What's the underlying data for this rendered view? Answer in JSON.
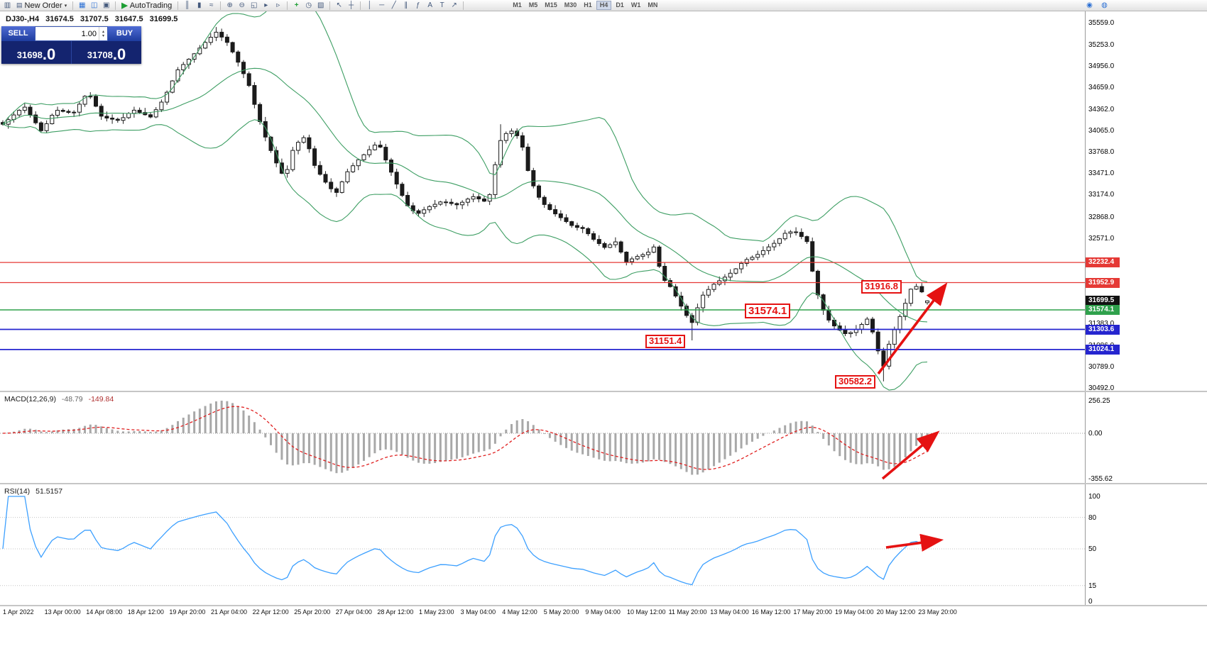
{
  "toolbar": {
    "new_order": {
      "label": "New Order"
    },
    "autotrading": {
      "label": "AutoTrading"
    },
    "icons": {
      "new_chart": "▥",
      "order_ticket": "▤",
      "caret": "▾",
      "chart_window": "▦",
      "market_watch": "◫",
      "data_window": "▣",
      "play": "▶",
      "bar_chart": "║",
      "candlestick_chart": "▮",
      "line_chart": "≈",
      "zoom_in": "⊕",
      "zoom_out": "⊖",
      "tile_windows": "◱",
      "auto_scroll": "▸",
      "chart_shift": "▹",
      "indicators_add": "+",
      "periods_clock": "◷",
      "templates": "▧",
      "cursor": "↖",
      "crosshair": "┼",
      "vertical_line": "│",
      "horizontal_line": "─",
      "trendline": "╱",
      "channel": "∥",
      "fibonacci": "ƒ",
      "text": "A",
      "label": "T",
      "arrow_object": "↗",
      "chat": "◉",
      "community": "◍"
    },
    "timeframes": {
      "items": [
        "M1",
        "M5",
        "M15",
        "M30",
        "H1",
        "H4",
        "D1",
        "W1",
        "MN"
      ],
      "active": "H4"
    }
  },
  "chart": {
    "symbol": "DJ30-,H4",
    "open": "31674.5",
    "high": "31707.5",
    "low": "31647.5",
    "close": "31699.5"
  },
  "one_click": {
    "sell_label": "SELL",
    "buy_label": "BUY",
    "volume": "1.00",
    "spin_up": "▴",
    "spin_down": "▾",
    "sell_price": {
      "main": "31698",
      "pips": ".0"
    },
    "buy_price": {
      "main": "31708",
      "pips": ".0"
    }
  },
  "price_axis": {
    "ticks": [
      "35559.0",
      "35253.0",
      "34956.0",
      "34659.0",
      "34362.0",
      "34065.0",
      "33768.0",
      "33471.0",
      "33174.0",
      "32868.0",
      "32571.0",
      "31383.0",
      "31086.0",
      "30789.0",
      "30492.0"
    ],
    "badges": [
      {
        "text": "32232.4",
        "color": "#e53935"
      },
      {
        "text": "31952.9",
        "color": "#e53935"
      },
      {
        "text": "31699.5",
        "color": "#111111"
      },
      {
        "text": "31574.1",
        "color": "#2fa14c"
      },
      {
        "text": "31303.6",
        "color": "#2525cf"
      },
      {
        "text": "31024.1",
        "color": "#2525cf"
      }
    ]
  },
  "macd_panel": {
    "name": "MACD(12,26,9)",
    "value_main": "-48.79",
    "value_signal": "-149.84",
    "scale": [
      "256.25",
      "0.00",
      "-355.62"
    ]
  },
  "rsi_panel": {
    "name": "RSI(14)",
    "value": "51.5157",
    "scale": [
      "100",
      "80",
      "50",
      "15",
      "0"
    ]
  },
  "annotations": {
    "a1": "31916.8",
    "a2": "31574.1",
    "a3": "31151.4",
    "a4": "30582.2"
  },
  "time_axis": {
    "labels": [
      "1 Apr 2022",
      "13 Apr 00:00",
      "14 Apr 08:00",
      "18 Apr 12:00",
      "19 Apr 20:00",
      "21 Apr 04:00",
      "22 Apr 12:00",
      "25 Apr 20:00",
      "27 Apr 04:00",
      "28 Apr 12:00",
      "1 May 23:00",
      "3 May 04:00",
      "4 May 12:00",
      "5 May 20:00",
      "9 May 04:00",
      "10 May 12:00",
      "11 May 20:00",
      "13 May 04:00",
      "16 May 12:00",
      "17 May 20:00",
      "19 May 04:00",
      "20 May 12:00",
      "23 May 20:00"
    ]
  },
  "chart_data": {
    "type": "candlestick",
    "symbol": "DJ30-",
    "timeframe": "H4",
    "last_ohlc": {
      "open": 31674.5,
      "high": 31707.5,
      "low": 31647.5,
      "close": 31699.5
    },
    "bid": 31698.0,
    "ask": 31708.0,
    "y_axis_range": [
      30492.0,
      35559.0
    ],
    "candle_count": 170,
    "price_waypoints": [
      [
        0.0,
        34150
      ],
      [
        0.023,
        34400
      ],
      [
        0.042,
        34050
      ],
      [
        0.057,
        34350
      ],
      [
        0.076,
        34300
      ],
      [
        0.092,
        34600
      ],
      [
        0.107,
        34250
      ],
      [
        0.126,
        34200
      ],
      [
        0.141,
        34350
      ],
      [
        0.16,
        34250
      ],
      [
        0.174,
        34500
      ],
      [
        0.189,
        34900
      ],
      [
        0.205,
        35100
      ],
      [
        0.22,
        35300
      ],
      [
        0.231,
        35430
      ],
      [
        0.243,
        35280
      ],
      [
        0.253,
        35050
      ],
      [
        0.266,
        34700
      ],
      [
        0.275,
        34300
      ],
      [
        0.286,
        33900
      ],
      [
        0.298,
        33550
      ],
      [
        0.305,
        33400
      ],
      [
        0.315,
        33850
      ],
      [
        0.327,
        33980
      ],
      [
        0.338,
        33550
      ],
      [
        0.35,
        33330
      ],
      [
        0.36,
        33180
      ],
      [
        0.372,
        33480
      ],
      [
        0.384,
        33650
      ],
      [
        0.395,
        33780
      ],
      [
        0.406,
        33900
      ],
      [
        0.416,
        33600
      ],
      [
        0.426,
        33320
      ],
      [
        0.437,
        33030
      ],
      [
        0.448,
        32900
      ],
      [
        0.46,
        33000
      ],
      [
        0.475,
        33080
      ],
      [
        0.492,
        33030
      ],
      [
        0.508,
        33150
      ],
      [
        0.525,
        33060
      ],
      [
        0.537,
        33900
      ],
      [
        0.548,
        34080
      ],
      [
        0.56,
        33950
      ],
      [
        0.57,
        33400
      ],
      [
        0.582,
        33080
      ],
      [
        0.594,
        32940
      ],
      [
        0.605,
        32840
      ],
      [
        0.617,
        32730
      ],
      [
        0.628,
        32700
      ],
      [
        0.64,
        32540
      ],
      [
        0.651,
        32440
      ],
      [
        0.663,
        32520
      ],
      [
        0.674,
        32240
      ],
      [
        0.685,
        32310
      ],
      [
        0.697,
        32360
      ],
      [
        0.706,
        32470
      ],
      [
        0.712,
        32040
      ],
      [
        0.723,
        31880
      ],
      [
        0.734,
        31620
      ],
      [
        0.745,
        31380
      ],
      [
        0.756,
        31760
      ],
      [
        0.768,
        31920
      ],
      [
        0.779,
        32010
      ],
      [
        0.791,
        32120
      ],
      [
        0.802,
        32260
      ],
      [
        0.814,
        32320
      ],
      [
        0.825,
        32420
      ],
      [
        0.837,
        32520
      ],
      [
        0.848,
        32660
      ],
      [
        0.859,
        32650
      ],
      [
        0.87,
        32520
      ],
      [
        0.879,
        31880
      ],
      [
        0.89,
        31480
      ],
      [
        0.901,
        31330
      ],
      [
        0.913,
        31230
      ],
      [
        0.924,
        31310
      ],
      [
        0.936,
        31460
      ],
      [
        0.943,
        31180
      ],
      [
        0.952,
        30760
      ],
      [
        0.959,
        31120
      ],
      [
        0.967,
        31380
      ],
      [
        0.975,
        31620
      ],
      [
        0.982,
        31860
      ],
      [
        0.99,
        31910
      ],
      [
        1.0,
        31699.5
      ]
    ],
    "forced_extremes": [
      {
        "f": 0.231,
        "high": 35499.0
      },
      {
        "f": 0.537,
        "high": 34150.0
      },
      {
        "f": 0.745,
        "low": 31151.4
      },
      {
        "f": 0.952,
        "low": 30582.2
      }
    ],
    "horizontal_levels": [
      {
        "price": 32232.4,
        "color": "#e53935",
        "width": 1.3
      },
      {
        "price": 31952.9,
        "color": "#e53935",
        "width": 1.3
      },
      {
        "price": 31574.1,
        "color": "#2fa14c",
        "width": 1.5
      },
      {
        "price": 31303.6,
        "color": "#2525cf",
        "width": 1.8
      },
      {
        "price": 31024.1,
        "color": "#2525cf",
        "width": 1.8
      }
    ],
    "indicators": {
      "bollinger": {
        "period": 20,
        "deviation": 2,
        "color": "#3d9e63"
      },
      "macd": {
        "fast": 12,
        "slow": 26,
        "signal": 9,
        "value": -48.79,
        "signal_value": -149.84,
        "scale_max": 256.25,
        "scale_min": -355.62,
        "histogram_color": "#a8a8a8",
        "signal_color": "#e02020"
      },
      "rsi": {
        "period": 14,
        "value": 51.5157,
        "levels": [
          80,
          50,
          15
        ],
        "color": "#3da0ff"
      }
    },
    "annotation_prices": [
      31916.8,
      31574.1,
      31151.4,
      30582.2
    ],
    "accent_red": "#e51212"
  }
}
